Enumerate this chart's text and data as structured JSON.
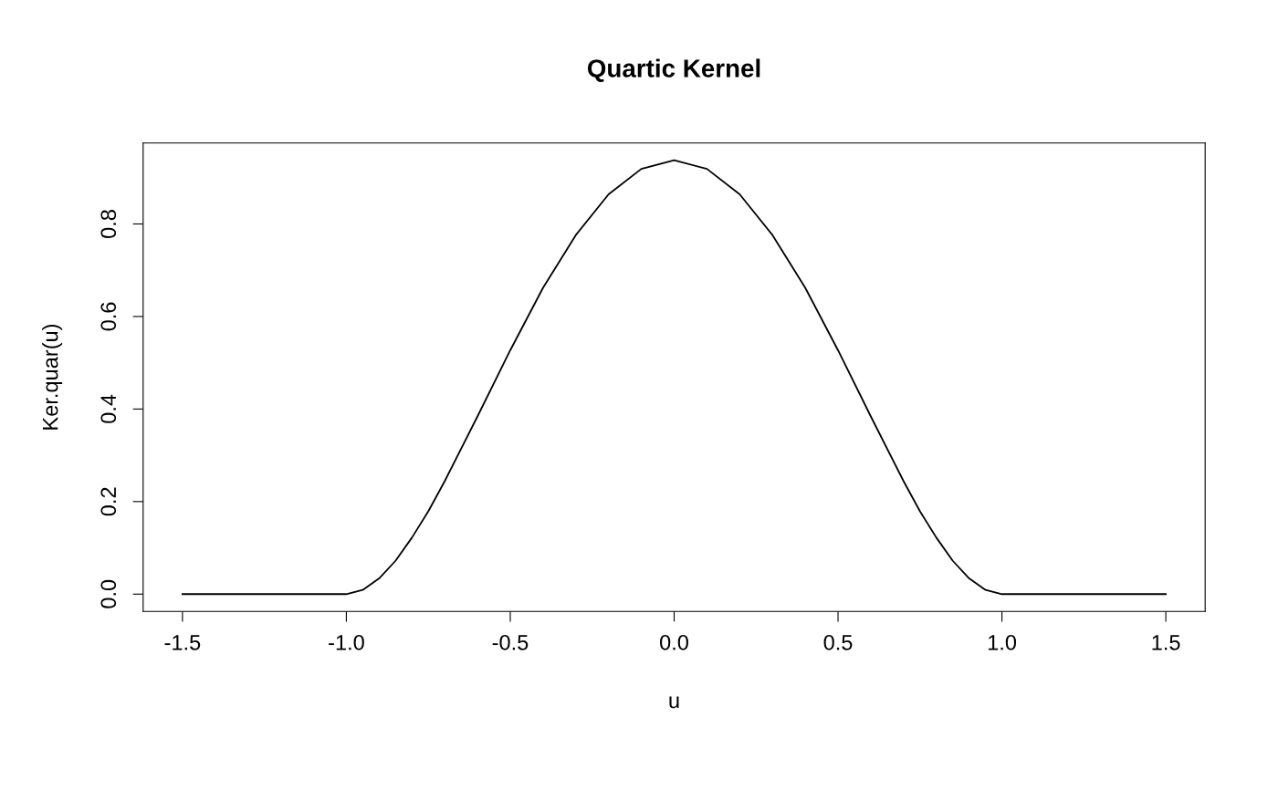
{
  "chart_data": {
    "type": "line",
    "title": "Quartic Kernel",
    "xlabel": "u",
    "ylabel": "Ker.quar(u)",
    "x": [
      -1.5,
      -1.0,
      -0.95,
      -0.9,
      -0.85,
      -0.8,
      -0.75,
      -0.7,
      -0.6,
      -0.5,
      -0.4,
      -0.3,
      -0.2,
      -0.1,
      0.0,
      0.1,
      0.2,
      0.3,
      0.4,
      0.5,
      0.6,
      0.7,
      0.75,
      0.8,
      0.85,
      0.9,
      0.95,
      1.0,
      1.5
    ],
    "series": [
      {
        "color": "#000000",
        "values": [
          0,
          0,
          0.009,
          0.034,
          0.072,
          0.122,
          0.179,
          0.244,
          0.384,
          0.527,
          0.662,
          0.776,
          0.864,
          0.919,
          0.938,
          0.919,
          0.864,
          0.776,
          0.662,
          0.527,
          0.384,
          0.244,
          0.179,
          0.122,
          0.072,
          0.034,
          0.009,
          0,
          0
        ]
      }
    ],
    "xlim": [
      -1.62,
      1.62
    ],
    "ylim": [
      -0.0375,
      0.975
    ],
    "xticks": [
      {
        "value": -1.5,
        "label": "-1.5"
      },
      {
        "value": -1.0,
        "label": "-1.0"
      },
      {
        "value": -0.5,
        "label": "-0.5"
      },
      {
        "value": 0.0,
        "label": "0.0"
      },
      {
        "value": 0.5,
        "label": "0.5"
      },
      {
        "value": 1.0,
        "label": "1.0"
      },
      {
        "value": 1.5,
        "label": "1.5"
      }
    ],
    "yticks": [
      {
        "value": 0.0,
        "label": "0.0"
      },
      0.2,
      0.4,
      0.6,
      0.8
    ],
    "grid": false,
    "legend": false,
    "marker": "none",
    "line_style": "solid"
  }
}
